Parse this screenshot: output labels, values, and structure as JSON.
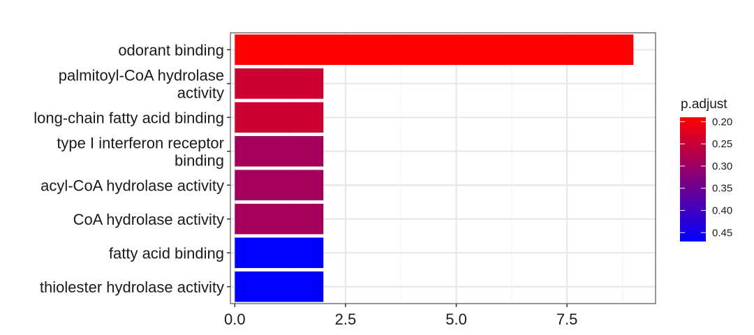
{
  "chart_data": {
    "type": "bar",
    "orientation": "horizontal",
    "categories": [
      "odorant binding",
      "palmitoyl-CoA hydrolase activity",
      "long-chain fatty acid binding",
      "type I interferon receptor binding",
      "acyl-CoA hydrolase activity",
      "CoA hydrolase activity",
      "fatty acid binding",
      "thiolester hydrolase activity"
    ],
    "category_label_lines": [
      [
        "odorant binding"
      ],
      [
        "palmitoyl-CoA hydrolase",
        "activity"
      ],
      [
        "long-chain fatty acid binding"
      ],
      [
        "type I interferon receptor",
        "binding"
      ],
      [
        "acyl-CoA hydrolase activity"
      ],
      [
        "CoA hydrolase activity"
      ],
      [
        "fatty acid binding"
      ],
      [
        "thiolester hydrolase activity"
      ]
    ],
    "values": [
      9,
      2,
      2,
      2,
      2,
      2,
      2,
      2
    ],
    "p_adjust": [
      0.19,
      0.245,
      0.245,
      0.29,
      0.29,
      0.29,
      0.47,
      0.47
    ],
    "title": "",
    "xlabel": "",
    "ylabel": "",
    "xlim": [
      -0.1,
      9.5
    ],
    "x_ticks": [
      0.0,
      2.5,
      5.0,
      7.5
    ],
    "x_tick_labels": [
      "0.0",
      "2.5",
      "5.0",
      "7.5"
    ],
    "grid": true,
    "legend": {
      "title": "p.adjust",
      "position": "right",
      "type": "colorbar",
      "range": [
        0.19,
        0.47
      ],
      "ticks": [
        0.2,
        0.25,
        0.3,
        0.35,
        0.4,
        0.45
      ],
      "tick_labels": [
        "0.20",
        "0.25",
        "0.30",
        "0.35",
        "0.40",
        "0.45"
      ],
      "low_color": "#ff0000",
      "high_color": "#0000ff"
    }
  }
}
